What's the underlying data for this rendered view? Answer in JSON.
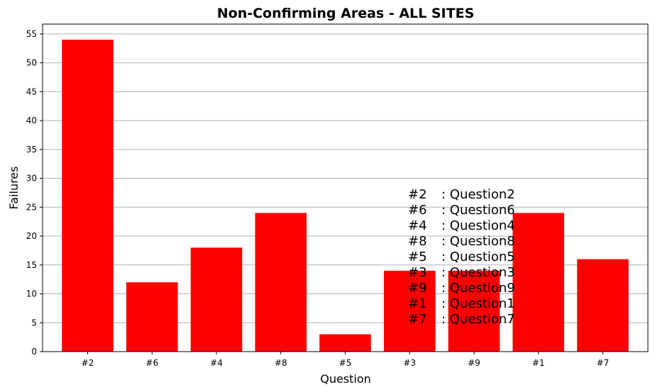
{
  "chart_data": {
    "type": "bar",
    "title": "Non-Confirming Areas - ALL SITES",
    "xlabel": "Question",
    "ylabel": "Failures",
    "categories": [
      "#2",
      "#6",
      "#4",
      "#8",
      "#5",
      "#3",
      "#9",
      "#1",
      "#7"
    ],
    "values": [
      54,
      12,
      18,
      24,
      3,
      14,
      14,
      24,
      16
    ],
    "ylim": [
      0,
      56.7
    ],
    "yticks": [
      0,
      5,
      10,
      15,
      20,
      25,
      30,
      35,
      40,
      45,
      50,
      55
    ],
    "grid": "y",
    "bar_color": "#ff0000",
    "annotation_lines": [
      {
        "code": "#2",
        "text": ": Question2"
      },
      {
        "code": "#6",
        "text": ": Question6"
      },
      {
        "code": "#4",
        "text": ": Question4"
      },
      {
        "code": "#8",
        "text": ": Question8"
      },
      {
        "code": "#5",
        "text": ": Question5"
      },
      {
        "code": "#3",
        "text": ": Question3"
      },
      {
        "code": "#9",
        "text": ": Question9"
      },
      {
        "code": "#1",
        "text": ": Question1"
      },
      {
        "code": "#7",
        "text": ": Question7"
      }
    ]
  }
}
